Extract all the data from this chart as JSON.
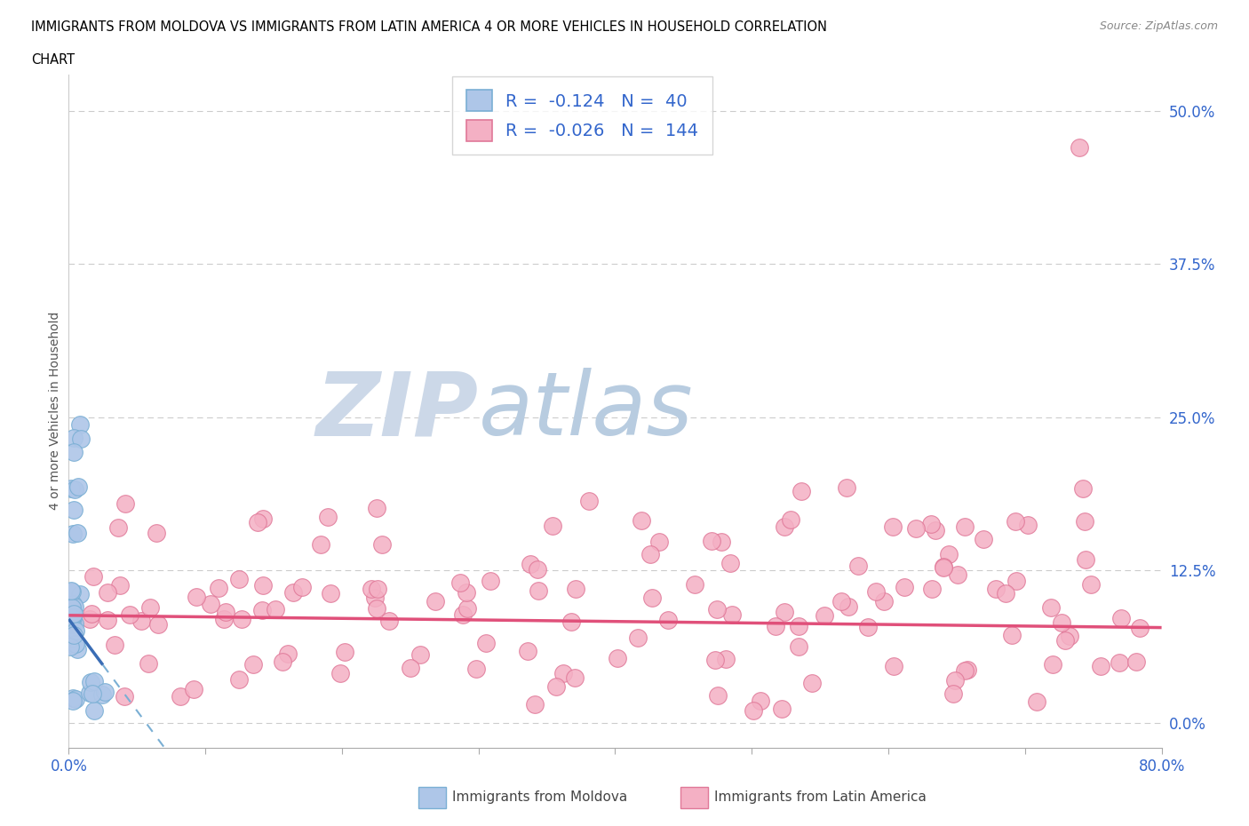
{
  "title_line1": "IMMIGRANTS FROM MOLDOVA VS IMMIGRANTS FROM LATIN AMERICA 4 OR MORE VEHICLES IN HOUSEHOLD CORRELATION",
  "title_line2": "CHART",
  "source": "Source: ZipAtlas.com",
  "ylabel": "4 or more Vehicles in Household",
  "ytick_vals": [
    0.0,
    12.5,
    25.0,
    37.5,
    50.0
  ],
  "ytick_labels": [
    "0.0%",
    "12.5%",
    "25.0%",
    "37.5%",
    "50.0%"
  ],
  "xlim": [
    0.0,
    80.0
  ],
  "ylim": [
    -2.0,
    53.0
  ],
  "moldova_R": -0.124,
  "moldova_N": 40,
  "latin_R": -0.026,
  "latin_N": 144,
  "moldova_color": "#aec6e8",
  "moldova_edge": "#7aafd4",
  "latin_color": "#f4b0c4",
  "latin_edge": "#e07898",
  "moldova_trend_color": "#3a6db5",
  "moldova_trend_dash_color": "#7aafd4",
  "latin_trend_color": "#e0507a",
  "watermark_zip": "ZIP",
  "watermark_atlas": "atlas",
  "watermark_color": "#ccd8e8",
  "tick_color": "#3366cc",
  "label_color": "#555555",
  "grid_color": "#cccccc"
}
